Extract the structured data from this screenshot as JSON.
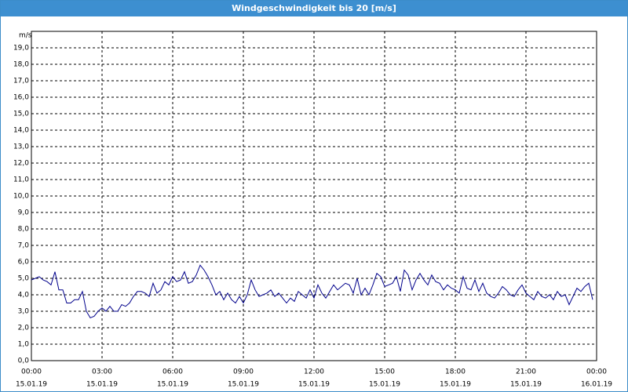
{
  "chart_data": {
    "type": "line",
    "title": "Windgeschwindigkeit bis 20 [m/s]",
    "y_label": "m/s",
    "color": "#00008b",
    "grid": true,
    "xlim": [
      0,
      1440
    ],
    "ylim": [
      0,
      20
    ],
    "xticks": [
      {
        "value": 0,
        "label": "00:00",
        "date": "15.01.19"
      },
      {
        "value": 180,
        "label": "03:00",
        "date": "15.01.19"
      },
      {
        "value": 360,
        "label": "06:00",
        "date": "15.01.19"
      },
      {
        "value": 540,
        "label": "09:00",
        "date": "15.01.19"
      },
      {
        "value": 720,
        "label": "12:00",
        "date": "15.01.19"
      },
      {
        "value": 900,
        "label": "15:00",
        "date": "15.01.19"
      },
      {
        "value": 1080,
        "label": "18:00",
        "date": "15.01.19"
      },
      {
        "value": 1260,
        "label": "21:00",
        "date": "15.01.19"
      },
      {
        "value": 1440,
        "label": "00:00",
        "date": "16.01.19"
      }
    ],
    "yticks": [
      {
        "value": 0,
        "label": "0,0"
      },
      {
        "value": 1,
        "label": "1,0"
      },
      {
        "value": 2,
        "label": "2,0"
      },
      {
        "value": 3,
        "label": "3,0"
      },
      {
        "value": 4,
        "label": "4,0"
      },
      {
        "value": 5,
        "label": "5,0"
      },
      {
        "value": 6,
        "label": "6,0"
      },
      {
        "value": 7,
        "label": "7,0"
      },
      {
        "value": 8,
        "label": "8,0"
      },
      {
        "value": 9,
        "label": "9,0"
      },
      {
        "value": 10,
        "label": "10,0"
      },
      {
        "value": 11,
        "label": "11,0"
      },
      {
        "value": 12,
        "label": "12,0"
      },
      {
        "value": 13,
        "label": "13,0"
      },
      {
        "value": 14,
        "label": "14,0"
      },
      {
        "value": 15,
        "label": "15,0"
      },
      {
        "value": 16,
        "label": "16,0"
      },
      {
        "value": 17,
        "label": "17,0"
      },
      {
        "value": 18,
        "label": "18,0"
      },
      {
        "value": 19,
        "label": "19,0"
      }
    ],
    "x": [
      0,
      10,
      20,
      30,
      40,
      50,
      60,
      70,
      80,
      90,
      100,
      110,
      120,
      130,
      140,
      150,
      160,
      170,
      180,
      190,
      200,
      210,
      220,
      230,
      240,
      250,
      260,
      270,
      280,
      290,
      300,
      310,
      320,
      330,
      340,
      350,
      360,
      370,
      380,
      390,
      400,
      410,
      420,
      430,
      440,
      450,
      460,
      470,
      480,
      490,
      500,
      510,
      520,
      530,
      540,
      550,
      560,
      570,
      580,
      590,
      600,
      610,
      620,
      630,
      640,
      650,
      660,
      670,
      680,
      690,
      700,
      710,
      720,
      730,
      740,
      750,
      760,
      770,
      780,
      790,
      800,
      810,
      820,
      830,
      840,
      850,
      860,
      870,
      880,
      890,
      900,
      910,
      920,
      930,
      940,
      950,
      960,
      970,
      980,
      990,
      1000,
      1010,
      1020,
      1030,
      1040,
      1050,
      1060,
      1070,
      1080,
      1090,
      1100,
      1110,
      1120,
      1130,
      1140,
      1150,
      1160,
      1170,
      1180,
      1190,
      1200,
      1210,
      1220,
      1230,
      1240,
      1250,
      1260,
      1270,
      1280,
      1290,
      1300,
      1310,
      1320,
      1330,
      1340,
      1350,
      1360,
      1370,
      1380,
      1390,
      1400,
      1410,
      1420,
      1430
    ],
    "values": [
      4.9,
      5.0,
      5.1,
      4.9,
      4.8,
      4.6,
      5.4,
      4.3,
      4.3,
      3.5,
      3.5,
      3.7,
      3.7,
      4.2,
      3.0,
      2.6,
      2.7,
      3.0,
      3.2,
      3.0,
      3.3,
      3.0,
      3.0,
      3.4,
      3.3,
      3.5,
      3.9,
      4.2,
      4.2,
      4.1,
      3.9,
      4.7,
      4.1,
      4.3,
      4.8,
      4.6,
      5.1,
      4.8,
      4.9,
      5.4,
      4.7,
      4.8,
      5.2,
      5.8,
      5.5,
      5.1,
      4.6,
      4.0,
      4.2,
      3.7,
      4.1,
      3.7,
      3.5,
      3.9,
      3.5,
      4.0,
      4.9,
      4.3,
      3.9,
      4.0,
      4.1,
      4.3,
      3.9,
      4.1,
      3.8,
      3.5,
      3.8,
      3.6,
      4.2,
      4.0,
      3.8,
      4.3,
      3.8,
      4.6,
      4.1,
      3.8,
      4.2,
      4.6,
      4.3,
      4.5,
      4.7,
      4.6,
      4.1,
      5.0,
      4.0,
      4.4,
      4.0,
      4.6,
      5.3,
      5.1,
      4.5,
      4.6,
      4.7,
      5.1,
      4.2,
      5.5,
      5.2,
      4.3,
      4.9,
      5.3,
      4.9,
      4.6,
      5.2,
      4.8,
      4.7,
      4.3,
      4.6,
      4.4,
      4.3,
      4.1,
      5.1,
      4.4,
      4.3,
      4.9,
      4.2,
      4.7,
      4.1,
      3.9,
      3.8,
      4.1,
      4.5,
      4.3,
      4.0,
      3.9,
      4.3,
      4.6,
      4.1,
      3.9,
      3.7,
      4.2,
      3.9,
      3.8,
      4.0,
      3.7,
      4.2,
      3.9,
      4.0,
      3.4,
      3.9,
      4.4,
      4.2,
      4.5,
      4.7,
      3.7
    ]
  }
}
